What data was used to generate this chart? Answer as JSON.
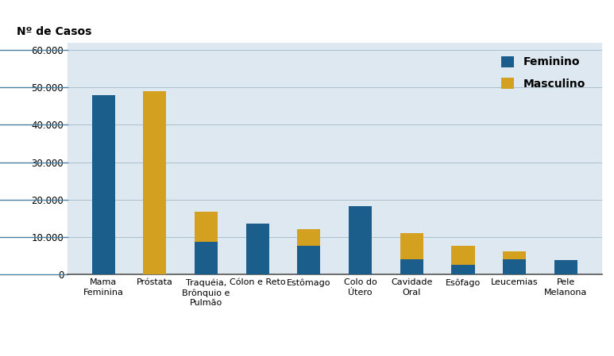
{
  "categories": [
    "Mama\nFeminina",
    "Próstata",
    "Traquéia,\nBrônquio e\nPulmão",
    "Cólon e Reto",
    "Estômago",
    "Colo do\nÚtero",
    "Cavidade\nOral",
    "Esôfago",
    "Leucemias",
    "Pele\nMelanona"
  ],
  "feminino": [
    48000,
    0,
    8700,
    13500,
    7500,
    18300,
    4000,
    2500,
    4000,
    3700
  ],
  "masculino": [
    0,
    49000,
    8000,
    0,
    4500,
    0,
    7000,
    5000,
    2000,
    0
  ],
  "color_feminino": "#1B5E8C",
  "color_masculino": "#D4A020",
  "ylabel": "Nº de Casos",
  "ylim": [
    0,
    62000
  ],
  "yticks": [
    0,
    10000,
    20000,
    30000,
    40000,
    50000,
    60000
  ],
  "ytick_labels": [
    "0",
    "10.000",
    "20.000",
    "30.000",
    "40.000",
    "50.000",
    "60.000"
  ],
  "legend_feminino": "Feminino",
  "legend_masculino": "Masculino",
  "bg_color": "#DDE8F0",
  "fig_bg_color": "#FFFFFF"
}
